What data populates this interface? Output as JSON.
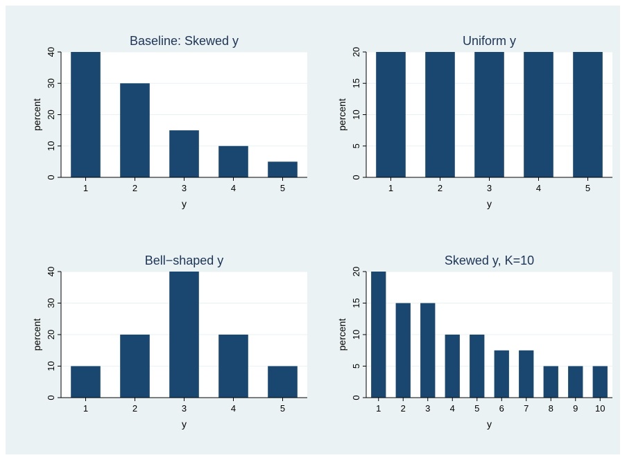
{
  "chart_data": [
    {
      "type": "bar",
      "title": "Baseline: Skewed y",
      "xlabel": "y",
      "ylabel": "percent",
      "categories": [
        "1",
        "2",
        "3",
        "4",
        "5"
      ],
      "values": [
        40,
        30,
        15,
        10,
        5
      ],
      "ylim": [
        0,
        40
      ],
      "yticks": [
        0,
        10,
        20,
        30,
        40
      ],
      "grid": true,
      "bar_color": "#1a476f"
    },
    {
      "type": "bar",
      "title": "Uniform y",
      "xlabel": "y",
      "ylabel": "percent",
      "categories": [
        "1",
        "2",
        "3",
        "4",
        "5"
      ],
      "values": [
        20,
        20,
        20,
        20,
        20
      ],
      "ylim": [
        0,
        20
      ],
      "yticks": [
        0,
        5,
        10,
        15,
        20
      ],
      "grid": true,
      "bar_color": "#1a476f"
    },
    {
      "type": "bar",
      "title": "Bell−shaped y",
      "xlabel": "y",
      "ylabel": "percent",
      "categories": [
        "1",
        "2",
        "3",
        "4",
        "5"
      ],
      "values": [
        10,
        20,
        40,
        20,
        10
      ],
      "ylim": [
        0,
        40
      ],
      "yticks": [
        0,
        10,
        20,
        30,
        40
      ],
      "grid": true,
      "bar_color": "#1a476f"
    },
    {
      "type": "bar",
      "title": "Skewed y, K=10",
      "xlabel": "y",
      "ylabel": "percent",
      "categories": [
        "1",
        "2",
        "3",
        "4",
        "5",
        "6",
        "7",
        "8",
        "9",
        "10"
      ],
      "values": [
        20,
        15,
        15,
        10,
        10,
        7.5,
        7.5,
        5,
        5,
        5
      ],
      "ylim": [
        0,
        20
      ],
      "yticks": [
        0,
        5,
        10,
        15,
        20
      ],
      "grid": true,
      "bar_color": "#1a476f"
    }
  ]
}
